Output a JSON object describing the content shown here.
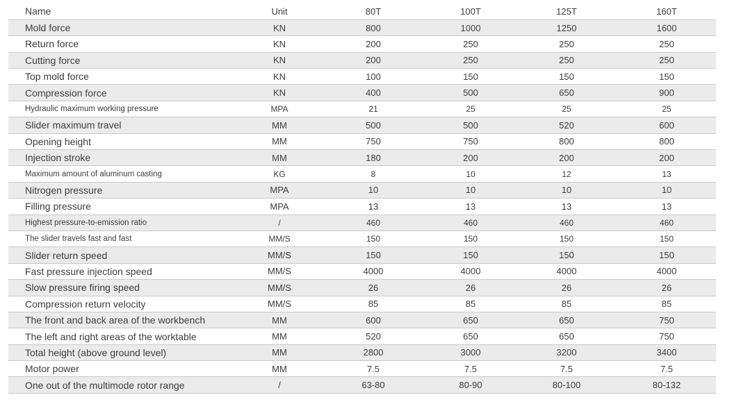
{
  "table": {
    "columns": [
      "Name",
      "Unit",
      "80T",
      "100T",
      "125T",
      "160T"
    ],
    "rows": [
      {
        "name": "Mold force",
        "unit": "KN",
        "values": [
          "800",
          "1000",
          "1250",
          "1600"
        ],
        "small": false
      },
      {
        "name": "Return force",
        "unit": "KN",
        "values": [
          "200",
          "250",
          "250",
          "250"
        ],
        "small": false
      },
      {
        "name": "Cutting force",
        "unit": "KN",
        "values": [
          "200",
          "250",
          "250",
          "250"
        ],
        "small": false
      },
      {
        "name": "Top mold force",
        "unit": "KN",
        "values": [
          "100",
          "150",
          "150",
          "150"
        ],
        "small": false
      },
      {
        "name": "Compression force",
        "unit": "KN",
        "values": [
          "400",
          "500",
          "650",
          "900"
        ],
        "small": false
      },
      {
        "name": "Hydraulic maximum working pressure",
        "unit": "MPA",
        "values": [
          "21",
          "25",
          "25",
          "25"
        ],
        "small": true
      },
      {
        "name": "Slider maximum travel",
        "unit": "MM",
        "values": [
          "500",
          "500",
          "520",
          "600"
        ],
        "small": false
      },
      {
        "name": "Opening height",
        "unit": "MM",
        "values": [
          "750",
          "750",
          "800",
          "800"
        ],
        "small": false
      },
      {
        "name": "Injection stroke",
        "unit": "MM",
        "values": [
          "180",
          "200",
          "200",
          "200"
        ],
        "small": false
      },
      {
        "name": "Maximum amount of aluminum casting",
        "unit": "KG",
        "values": [
          "8",
          "10",
          "12",
          "13"
        ],
        "small": true
      },
      {
        "name": "Nitrogen pressure",
        "unit": "MPA",
        "values": [
          "10",
          "10",
          "10",
          "10"
        ],
        "small": false
      },
      {
        "name": "Filling pressure",
        "unit": "MPA",
        "values": [
          "13",
          "13",
          "13",
          "13"
        ],
        "small": false
      },
      {
        "name": "Highest pressure-to-emission ratio",
        "unit": "/",
        "values": [
          "460",
          "460",
          "460",
          "460"
        ],
        "small": true
      },
      {
        "name": "The slider travels fast and fast",
        "unit": "MM/S",
        "values": [
          "150",
          "150",
          "150",
          "150"
        ],
        "small": true
      },
      {
        "name": "Slider return speed",
        "unit": "MM/S",
        "values": [
          "150",
          "150",
          "150",
          "150"
        ],
        "small": false
      },
      {
        "name": "Fast pressure injection speed",
        "unit": "MM/S",
        "values": [
          "4000",
          "4000",
          "4000",
          "4000"
        ],
        "small": false
      },
      {
        "name": "Slow pressure firing speed",
        "unit": "MM/S",
        "values": [
          "26",
          "26",
          "26",
          "26"
        ],
        "small": false
      },
      {
        "name": "Compression return velocity",
        "unit": "MM/S",
        "values": [
          "85",
          "85",
          "85",
          "85"
        ],
        "small": false
      },
      {
        "name": "The front and back area of the workbench",
        "unit": "MM",
        "values": [
          "600",
          "650",
          "650",
          "750"
        ],
        "small": false
      },
      {
        "name": "The left and right areas of the worktable",
        "unit": "MM",
        "values": [
          "520",
          "650",
          "650",
          "750"
        ],
        "small": false
      },
      {
        "name": "Total height (above ground level)",
        "unit": "MM",
        "values": [
          "2800",
          "3000",
          "3200",
          "3400"
        ],
        "small": false
      },
      {
        "name": "Motor power",
        "unit": "MM",
        "values": [
          "7.5",
          "7.5",
          "7.5",
          "7.5"
        ],
        "small": false
      },
      {
        "name": "One out of the multimode rotor range",
        "unit": "/",
        "values": [
          "63-80",
          "80-90",
          "80-100",
          "80-132"
        ],
        "small": false
      }
    ]
  }
}
